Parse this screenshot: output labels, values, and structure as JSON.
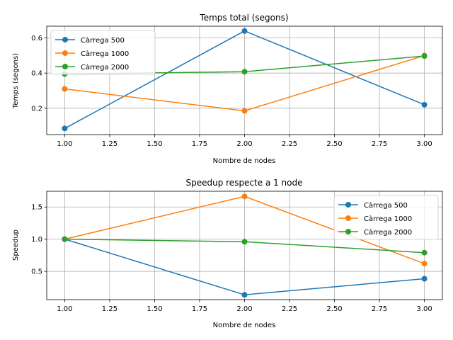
{
  "chart_data": [
    {
      "type": "line",
      "title": "Temps total (segons)",
      "xlabel": "Nombre de nodes",
      "ylabel": "Temps (segons)",
      "xlim": [
        0.9,
        3.1
      ],
      "ylim": [
        0.05,
        0.667
      ],
      "xticks": [
        1.0,
        1.25,
        1.5,
        1.75,
        2.0,
        2.25,
        2.5,
        2.75,
        3.0
      ],
      "xtick_labels": [
        "1.00",
        "1.25",
        "1.50",
        "1.75",
        "2.00",
        "2.25",
        "2.50",
        "2.75",
        "3.00"
      ],
      "yticks": [
        0.2,
        0.4,
        0.6
      ],
      "ytick_labels": [
        "0.2",
        "0.4",
        "0.6"
      ],
      "grid": true,
      "legend_position": "upper-left",
      "x": [
        1,
        2,
        3
      ],
      "series": [
        {
          "name": "Càrrega 500",
          "color": "#1f77b4",
          "values": [
            0.085,
            0.64,
            0.22
          ]
        },
        {
          "name": "Càrrega 1000",
          "color": "#ff7f0e",
          "values": [
            0.31,
            0.185,
            0.5
          ]
        },
        {
          "name": "Càrrega 2000",
          "color": "#2ca02c",
          "values": [
            0.395,
            0.408,
            0.497
          ]
        }
      ]
    },
    {
      "type": "line",
      "title": "Speedup respecte a 1 node",
      "xlabel": "Nombre de nodes",
      "ylabel": "Speedup",
      "xlim": [
        0.9,
        3.1
      ],
      "ylim": [
        0.06,
        1.745
      ],
      "xticks": [
        1.0,
        1.25,
        1.5,
        1.75,
        2.0,
        2.25,
        2.5,
        2.75,
        3.0
      ],
      "xtick_labels": [
        "1.00",
        "1.25",
        "1.50",
        "1.75",
        "2.00",
        "2.25",
        "2.50",
        "2.75",
        "3.00"
      ],
      "yticks": [
        0.5,
        1.0,
        1.5
      ],
      "ytick_labels": [
        "0.5",
        "1.0",
        "1.5"
      ],
      "grid": true,
      "legend_position": "upper-right",
      "x": [
        1,
        2,
        3
      ],
      "series": [
        {
          "name": "Càrrega 500",
          "color": "#1f77b4",
          "values": [
            1.0,
            0.135,
            0.385
          ]
        },
        {
          "name": "Càrrega 1000",
          "color": "#ff7f0e",
          "values": [
            1.0,
            1.665,
            0.62
          ]
        },
        {
          "name": "Càrrega 2000",
          "color": "#2ca02c",
          "values": [
            1.0,
            0.96,
            0.79
          ]
        }
      ]
    }
  ]
}
